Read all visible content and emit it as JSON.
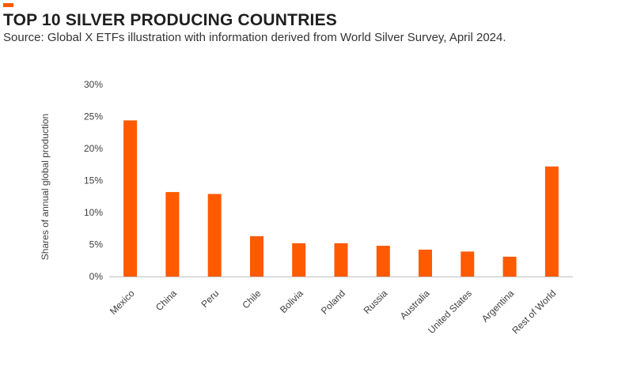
{
  "header": {
    "title": "TOP 10 SILVER PRODUCING COUNTRIES",
    "subtitle": "Source: Global X ETFs illustration with information derived from World Silver Survey, April 2024."
  },
  "colors": {
    "accent": "#FF5A00",
    "bar": "#FF5A00",
    "axis": "#BFBFBF",
    "text": "#404040"
  },
  "chart_data": {
    "type": "bar",
    "categories": [
      "Mexico",
      "China",
      "Peru",
      "Chile",
      "Bolivia",
      "Poland",
      "Russia",
      "Australia",
      "United States",
      "Argentina",
      "Rest of World"
    ],
    "series": [
      {
        "values": [
          24.4,
          13.2,
          12.9,
          6.3,
          5.2,
          5.2,
          4.8,
          4.2,
          3.9,
          3.1,
          17.2
        ]
      }
    ],
    "ylabel": "Shares of annual global production",
    "ylim": [
      0,
      30
    ],
    "yticks": [
      "0%",
      "5%",
      "10%",
      "15%",
      "20%",
      "25%",
      "30%"
    ],
    "ytick_values": [
      0,
      5,
      10,
      15,
      20,
      25,
      30
    ],
    "grid": false,
    "legend": "none"
  }
}
